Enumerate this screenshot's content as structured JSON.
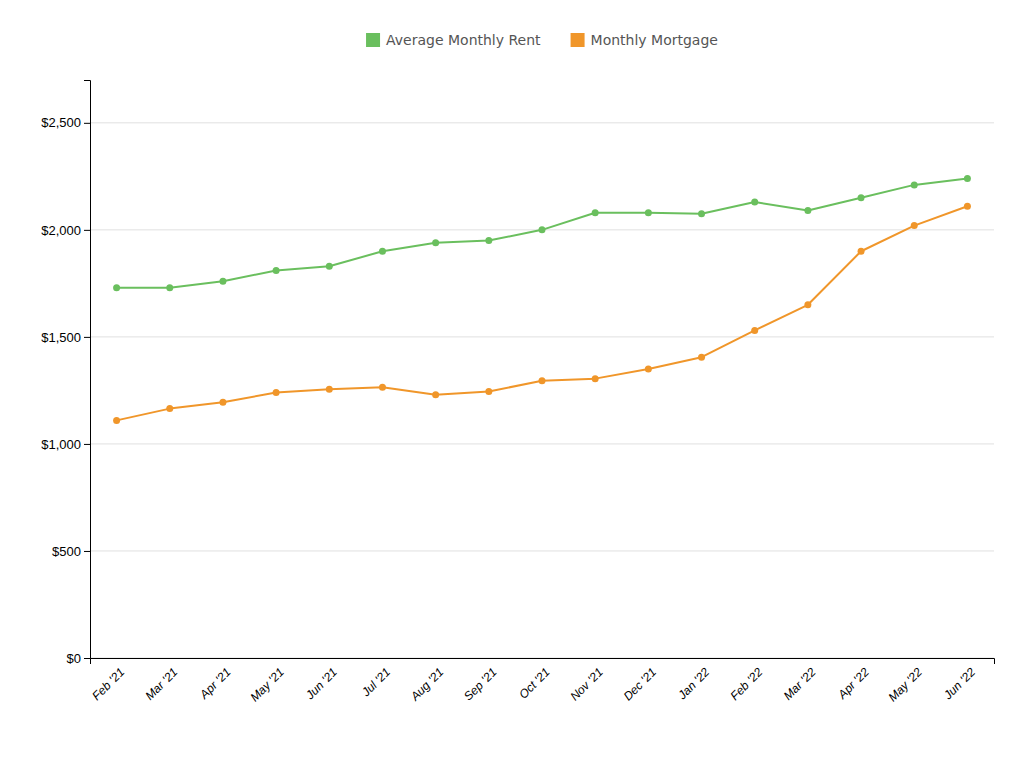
{
  "chart_data": {
    "type": "line",
    "categories": [
      "Feb '21",
      "Mar '21",
      "Apr '21",
      "May '21",
      "Jun '21",
      "Jul '21",
      "Aug '21",
      "Sep '21",
      "Oct '21",
      "Nov '21",
      "Dec '21",
      "Jan '22",
      "Feb '22",
      "Mar '22",
      "Apr '22",
      "May '22",
      "Jun '22"
    ],
    "series": [
      {
        "name": "Average Monthly Rent",
        "color": "#6abf5e",
        "values": [
          1730,
          1730,
          1760,
          1810,
          1830,
          1900,
          1940,
          1950,
          2000,
          2080,
          2080,
          2075,
          2130,
          2090,
          2150,
          2210,
          2240
        ]
      },
      {
        "name": "Monthly Mortgage",
        "color": "#f0962a",
        "values": [
          1110,
          1165,
          1195,
          1240,
          1255,
          1265,
          1230,
          1245,
          1295,
          1305,
          1350,
          1405,
          1530,
          1650,
          1900,
          2020,
          2110
        ]
      }
    ],
    "ylim": [
      0,
      2700
    ],
    "yticks": [
      {
        "value": 0,
        "label": "$0"
      },
      {
        "value": 500,
        "label": "$500"
      },
      {
        "value": 1000,
        "label": "$1,000"
      },
      {
        "value": 1500,
        "label": "$1,500"
      },
      {
        "value": 2000,
        "label": "$2,000"
      },
      {
        "value": 2500,
        "label": "$2,500"
      }
    ],
    "grid": true,
    "legend": "top",
    "marker": "circle"
  }
}
